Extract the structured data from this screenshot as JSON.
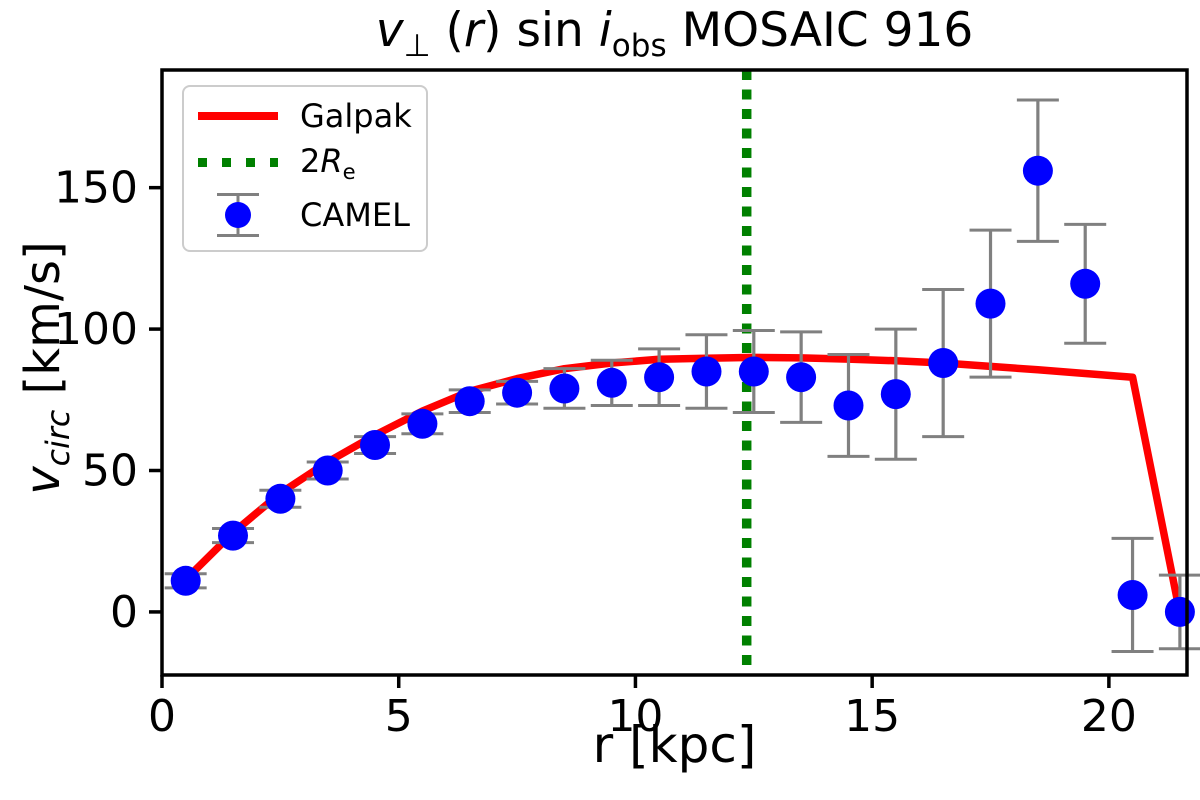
{
  "page": {
    "background": "#ffffff"
  },
  "colors": {
    "axis": "#000000",
    "galpak": "#ff0000",
    "re_line": "#008000",
    "camel": "#0000ff",
    "errorbar": "#808080",
    "legend_border": "#cccccc"
  },
  "chart_data": {
    "type": "scatter",
    "title_segments": [
      {
        "text": "v",
        "italic": true
      },
      {
        "text": "⊥",
        "sub": true
      },
      {
        "text": " ("
      },
      {
        "text": "r",
        "italic": true
      },
      {
        "text": ") sin "
      },
      {
        "text": "i",
        "italic": true
      },
      {
        "text": "obs",
        "sub": true
      },
      {
        "text": " MOSAIC 916"
      }
    ],
    "xlabel_segments": [
      {
        "text": "r [kpc]"
      }
    ],
    "ylabel_segments": [
      {
        "text": "v",
        "italic": true
      },
      {
        "text": "circ",
        "italic": true,
        "sub": true
      },
      {
        "text": " [km/s]"
      }
    ],
    "x_ticks": [
      0,
      5,
      10,
      15,
      20
    ],
    "y_ticks": [
      0,
      50,
      100,
      150
    ],
    "xlim": [
      0,
      21.65
    ],
    "ylim": [
      -22.3,
      191.6
    ],
    "grid": false,
    "legend_position": "upper left",
    "series": [
      {
        "name": "Galpak",
        "type": "line",
        "color": "#ff0000",
        "x": [
          0.5,
          1.5,
          2.5,
          3.5,
          4.5,
          5.5,
          6.5,
          7.5,
          8.5,
          9.5,
          10.5,
          11.5,
          12.5,
          13.5,
          14.5,
          15.5,
          16.5,
          17.5,
          18.5,
          19.5,
          20.5,
          21.5
        ],
        "y": [
          11.5,
          28,
          42,
          53,
          62.5,
          71,
          78,
          82.5,
          86,
          88,
          89.3,
          89.7,
          90,
          89.8,
          89.4,
          88.8,
          88,
          86.8,
          85.6,
          84.3,
          83,
          -0.5
        ]
      },
      {
        "name": "2Re",
        "type": "vline",
        "color": "#008000",
        "style": "dotted",
        "x": 12.35
      },
      {
        "name": "CAMEL",
        "type": "scatter",
        "color": "#0000ff",
        "errorbar_color": "#808080",
        "x": [
          0.5,
          1.5,
          2.5,
          3.5,
          4.5,
          5.5,
          6.5,
          7.5,
          8.5,
          9.5,
          10.5,
          11.5,
          12.5,
          13.5,
          14.5,
          15.5,
          16.5,
          17.5,
          18.5,
          19.5,
          20.5,
          21.5
        ],
        "y": [
          11,
          27,
          40,
          50,
          59,
          66.5,
          74.5,
          77.5,
          79,
          81,
          83,
          85,
          85,
          83,
          73,
          77,
          88,
          109,
          156,
          116,
          6,
          0
        ],
        "yerr": [
          2.5,
          2.5,
          3,
          3,
          3,
          3.5,
          4,
          4,
          7,
          8,
          10,
          13,
          14.5,
          16,
          18,
          23,
          26,
          26,
          25,
          21,
          20,
          13
        ]
      }
    ],
    "legend_items": [
      {
        "swatch": "line",
        "label_segments": [
          {
            "text": "Galpak"
          }
        ]
      },
      {
        "swatch": "dotted",
        "label_segments": [
          {
            "text": "2"
          },
          {
            "text": "R",
            "italic": true
          },
          {
            "text": "e",
            "sub": true
          }
        ]
      },
      {
        "swatch": "errorbar",
        "label_segments": [
          {
            "text": "CAMEL"
          }
        ]
      }
    ]
  }
}
